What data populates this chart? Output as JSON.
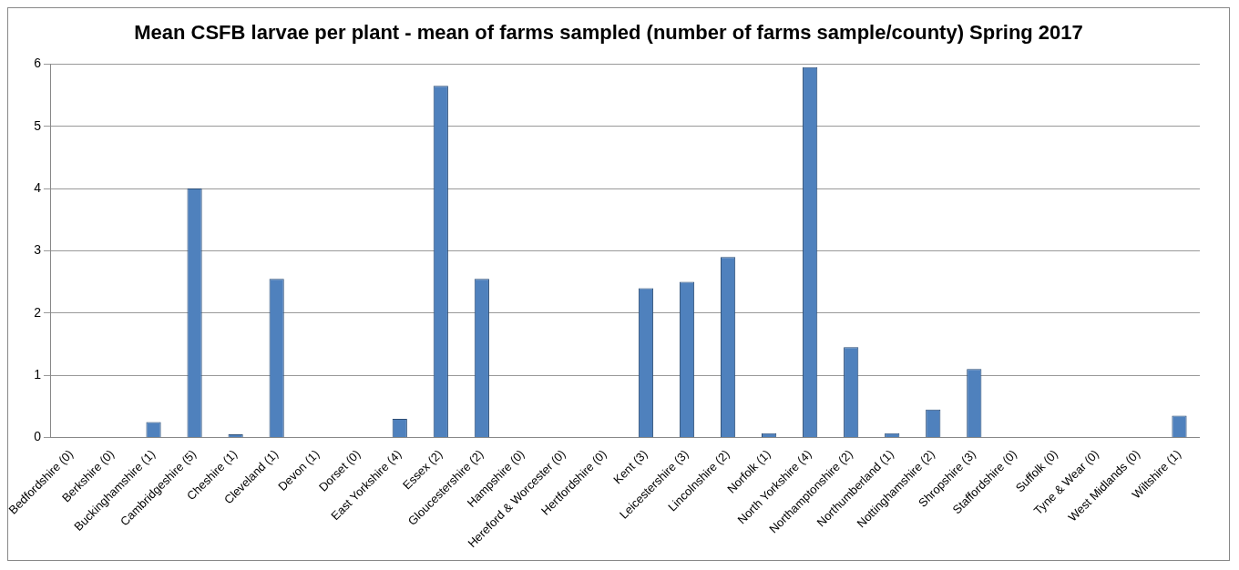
{
  "chart_data": {
    "type": "bar",
    "title": "Mean CSFB larvae per plant - mean of farms sampled (number of farms sample/county) Spring 2017",
    "categories": [
      "Bedfordshire (0)",
      "Berkshire (0)",
      "Buckinghamshire (1)",
      "Cambridgeshire (5)",
      "Cheshire (1)",
      "Cleveland (1)",
      "Devon (1)",
      "Dorset (0)",
      "East Yorkshire (4)",
      "Essex (2)",
      "Gloucestershire (2)",
      "Hampshire (0)",
      "Hereford & Worcester (0)",
      "Hertfordshire (0)",
      "Kent (3)",
      "Leicestershire (3)",
      "Lincolnshire (2)",
      "Norfolk (1)",
      "North Yorkshire (4)",
      "Northamptonshire (2)",
      "Northumberland (1)",
      "Nottinghamshire (2)",
      "Shropshire (3)",
      "Staffordshire (0)",
      "Suffolk (0)",
      "Tyne & Wear (0)",
      "West Midlands (0)",
      "Wiltshire (1)"
    ],
    "values": [
      0,
      0,
      0.25,
      4.0,
      0.05,
      2.55,
      0,
      0,
      0.3,
      5.65,
      2.55,
      0,
      0,
      0,
      2.4,
      2.5,
      2.9,
      0.07,
      5.95,
      1.45,
      0.07,
      0.45,
      1.1,
      0,
      0,
      0,
      0,
      0.35
    ],
    "color": "#4f81bd",
    "ylim": [
      0,
      6
    ],
    "yticks": [
      0,
      1,
      2,
      3,
      4,
      5,
      6
    ],
    "grid": "y",
    "legend": false
  }
}
